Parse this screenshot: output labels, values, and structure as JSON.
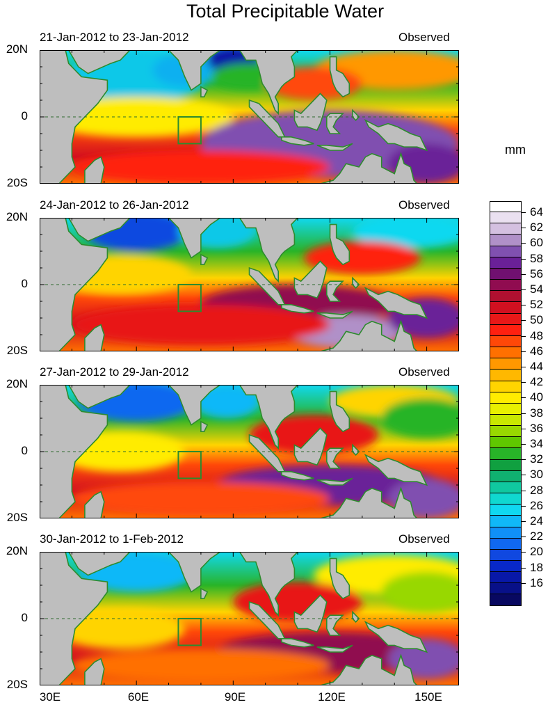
{
  "title": "Total Precipitable Water",
  "unit": "mm",
  "panels": [
    {
      "date_range": "21-Jan-2012 to 23-Jan-2012",
      "label": "Observed"
    },
    {
      "date_range": "24-Jan-2012 to 26-Jan-2012",
      "label": "Observed"
    },
    {
      "date_range": "27-Jan-2012 to 29-Jan-2012",
      "label": "Observed"
    },
    {
      "date_range": "30-Jan-2012 to 1-Feb-2012",
      "label": "Observed"
    }
  ],
  "lat_labels": [
    "20N",
    "0",
    "20S"
  ],
  "lon_labels": [
    "30E",
    "60E",
    "90E",
    "120E",
    "150E"
  ],
  "colorbar": {
    "labels": [
      "64",
      "62",
      "60",
      "58",
      "56",
      "54",
      "52",
      "50",
      "48",
      "46",
      "44",
      "42",
      "40",
      "38",
      "36",
      "34",
      "32",
      "30",
      "28",
      "26",
      "24",
      "22",
      "20",
      "18",
      "16"
    ],
    "colors": [
      "#ffffff",
      "#eae0f0",
      "#d4c0e0",
      "#b090c8",
      "#8050b0",
      "#6a2098",
      "#701070",
      "#900c50",
      "#b01030",
      "#d01020",
      "#e81818",
      "#ff2010",
      "#ff4808",
      "#ff7000",
      "#ff9800",
      "#ffb800",
      "#ffd400",
      "#ffec00",
      "#e8f000",
      "#c8e800",
      "#98d800",
      "#60c800",
      "#28b428",
      "#10a040",
      "#10b070",
      "#10c8a0",
      "#10d8d0",
      "#10d8f0",
      "#10b8f8",
      "#1090f8",
      "#1068f0",
      "#1048e0",
      "#0828c8",
      "#0818a8",
      "#081088",
      "#080860"
    ]
  },
  "box_region": "target box near equator, 73E-80E",
  "map_extent": {
    "lon_min": 30,
    "lon_max": 160,
    "lat_min": -20,
    "lat_max": 20
  }
}
